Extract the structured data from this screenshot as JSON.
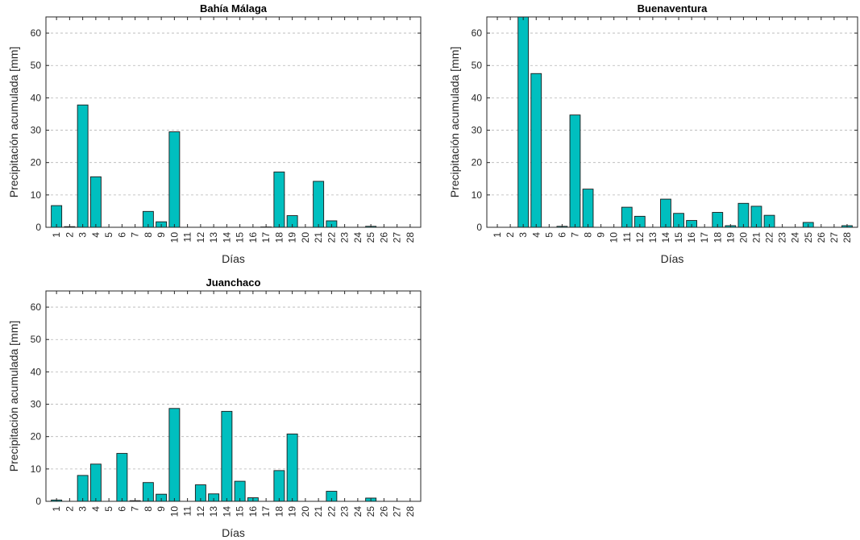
{
  "chart_data": [
    {
      "type": "bar",
      "title": "Bahía Málaga",
      "xlabel": "Días",
      "ylabel": "Precipitación acumulada [mm]",
      "ylim": [
        0,
        65
      ],
      "yticks": [
        0,
        10,
        20,
        30,
        40,
        50,
        60
      ],
      "grid": "horizontal",
      "bar_color": "#00BFBF",
      "categories": [
        "1",
        "2",
        "3",
        "4",
        "5",
        "6",
        "7",
        "8",
        "9",
        "10",
        "11",
        "12",
        "13",
        "14",
        "15",
        "16",
        "17",
        "18",
        "19",
        "20",
        "21",
        "22",
        "23",
        "24",
        "25",
        "26",
        "27",
        "28"
      ],
      "values": [
        6.7,
        0.2,
        37.8,
        15.6,
        0,
        0,
        0,
        4.9,
        1.7,
        29.5,
        0,
        0,
        0,
        0,
        0,
        0,
        0.1,
        17.1,
        3.6,
        0,
        14.2,
        2.0,
        0,
        0,
        0.3,
        0,
        0,
        0
      ]
    },
    {
      "type": "bar",
      "title": "Buenaventura",
      "xlabel": "Días",
      "ylabel": "Precipitación acumulada [mm]",
      "ylim": [
        0,
        65
      ],
      "yticks": [
        0,
        10,
        20,
        30,
        40,
        50,
        60
      ],
      "grid": "horizontal",
      "bar_color": "#00BFBF",
      "categories": [
        "1",
        "2",
        "3",
        "4",
        "5",
        "6",
        "7",
        "8",
        "9",
        "10",
        "11",
        "12",
        "13",
        "14",
        "15",
        "16",
        "17",
        "18",
        "19",
        "20",
        "21",
        "22",
        "23",
        "24",
        "25",
        "26",
        "27",
        "28"
      ],
      "values": [
        0,
        0,
        65,
        47.5,
        0,
        0.3,
        34.7,
        11.8,
        0,
        0,
        6.2,
        3.4,
        0,
        8.7,
        4.3,
        2.1,
        0,
        4.6,
        0.5,
        7.4,
        6.5,
        3.7,
        0,
        0,
        1.5,
        0,
        0,
        0.5
      ]
    },
    {
      "type": "bar",
      "title": "Juanchaco",
      "xlabel": "Días",
      "ylabel": "Precipitación acumulada [mm]",
      "ylim": [
        0,
        65
      ],
      "yticks": [
        0,
        10,
        20,
        30,
        40,
        50,
        60
      ],
      "grid": "horizontal",
      "bar_color": "#00BFBF",
      "categories": [
        "1",
        "2",
        "3",
        "4",
        "5",
        "6",
        "7",
        "8",
        "9",
        "10",
        "11",
        "12",
        "13",
        "14",
        "15",
        "16",
        "17",
        "18",
        "19",
        "20",
        "21",
        "22",
        "23",
        "24",
        "25",
        "26",
        "27",
        "28"
      ],
      "values": [
        0.4,
        0,
        8.0,
        11.5,
        0,
        14.8,
        0.2,
        5.8,
        2.2,
        28.7,
        0,
        5.1,
        2.3,
        27.8,
        6.2,
        1.1,
        0,
        9.5,
        20.8,
        0,
        0,
        3.1,
        0,
        0,
        1.0,
        0,
        0,
        0
      ]
    }
  ]
}
